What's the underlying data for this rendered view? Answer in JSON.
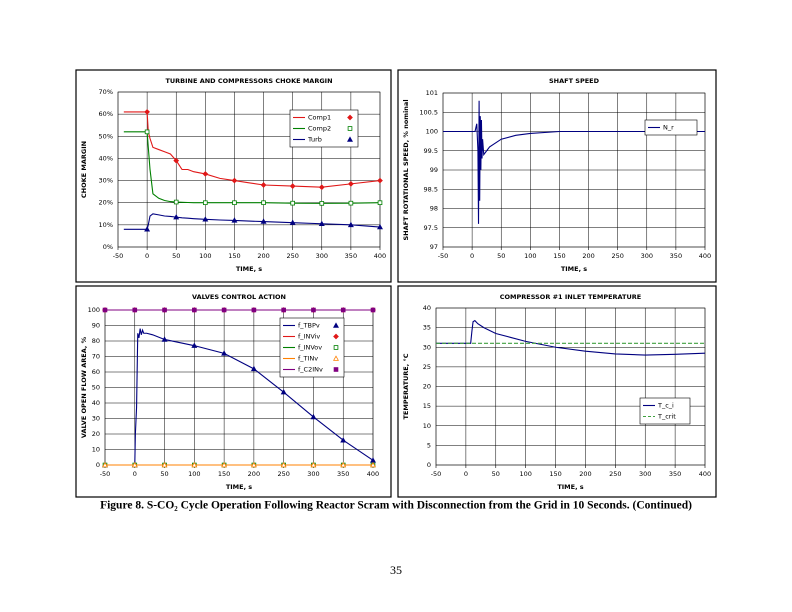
{
  "chart_data": [
    {
      "type": "line",
      "title": "TURBINE AND COMPRESSORS CHOKE MARGIN",
      "xlabel": "TIME, s",
      "ylabel": "CHOKE MARGIN",
      "x": [
        -40,
        -20,
        0,
        2,
        5,
        10,
        20,
        30,
        40,
        50,
        60,
        70,
        80,
        100,
        125,
        150,
        175,
        200,
        250,
        300,
        350,
        400
      ],
      "series": [
        {
          "name": "Comp1",
          "color": "#e01818",
          "marker": "diamond",
          "values": [
            61,
            61,
            61,
            52,
            49,
            45,
            44,
            43,
            42,
            39,
            35,
            35,
            34,
            33,
            31,
            30,
            29,
            28,
            27.5,
            27,
            28.5,
            30
          ]
        },
        {
          "name": "Comp2",
          "color": "#008000",
          "marker": "square-open",
          "values": [
            52,
            52,
            52,
            45,
            35,
            24,
            22,
            21,
            20.5,
            20.3,
            20.2,
            20.1,
            20,
            20,
            20,
            20,
            20,
            20,
            19.8,
            19.7,
            19.8,
            20
          ]
        },
        {
          "name": "Turb",
          "color": "#000080",
          "marker": "triangle",
          "values": [
            8,
            8,
            8,
            10,
            14,
            15,
            14.5,
            14,
            13.8,
            13.5,
            13.2,
            13,
            12.8,
            12.5,
            12.2,
            12,
            11.7,
            11.5,
            11,
            10.5,
            10,
            9
          ]
        }
      ],
      "xlim": [
        -50,
        400
      ],
      "xticks": [
        -50,
        0,
        50,
        100,
        150,
        200,
        250,
        300,
        350,
        400
      ],
      "ylim": [
        0,
        70
      ],
      "yticks": [
        {
          "value": 0,
          "label": "0%"
        },
        {
          "value": 10,
          "label": "10%"
        },
        {
          "value": 20,
          "label": "20%"
        },
        {
          "value": 30,
          "label": "30%"
        },
        {
          "value": 40,
          "label": "40%"
        },
        {
          "value": 50,
          "label": "50%"
        },
        {
          "value": 60,
          "label": "60%"
        },
        {
          "value": 70,
          "label": "70%"
        }
      ],
      "grid": true,
      "legend": "upper right"
    },
    {
      "type": "line",
      "title": "SHAFT SPEED",
      "xlabel": "TIME, s",
      "ylabel": "SHAFT ROTATIONAL SPEED, % nominal",
      "x": [
        -50,
        -20,
        0,
        5,
        8,
        10,
        11,
        12,
        13,
        14,
        15,
        16,
        17,
        18,
        20,
        25,
        30,
        40,
        50,
        75,
        100,
        150,
        200,
        300,
        400
      ],
      "series": [
        {
          "name": "N_r",
          "color": "#000080",
          "values": [
            100,
            100,
            100,
            100,
            100.2,
            99.5,
            97.6,
            100.8,
            98.2,
            100.4,
            99,
            100.3,
            99.3,
            99.8,
            99.4,
            99.5,
            99.6,
            99.7,
            99.8,
            99.9,
            99.95,
            100,
            100,
            100,
            100
          ]
        }
      ],
      "xlim": [
        -50,
        400
      ],
      "xticks": [
        -50,
        0,
        50,
        100,
        150,
        200,
        250,
        300,
        350,
        400
      ],
      "ylim": [
        97,
        101
      ],
      "yticks": [
        97,
        97.5,
        98,
        98.5,
        99,
        99.5,
        100,
        100.5,
        101
      ],
      "grid": true,
      "legend": "upper right"
    },
    {
      "type": "line",
      "title": "VALVES CONTROL ACTION",
      "xlabel": "TIME, s",
      "ylabel": "VALVE OPEN FLOW AREA, %",
      "x": [
        -50,
        -25,
        0,
        1,
        3,
        5,
        7,
        9,
        11,
        13,
        15,
        20,
        30,
        50,
        100,
        150,
        200,
        250,
        300,
        350,
        400
      ],
      "series": [
        {
          "name": "f_TBPv",
          "color": "#000080",
          "marker": "triangle",
          "values": [
            0,
            0,
            0,
            20,
            37,
            85,
            82,
            88,
            84,
            87,
            85,
            85,
            84,
            81,
            77,
            72,
            62,
            47,
            31,
            16,
            3
          ]
        },
        {
          "name": "f_INViv",
          "color": "#e01818",
          "marker": "diamond",
          "values": [
            100,
            100,
            100,
            100,
            100,
            100,
            100,
            100,
            100,
            100,
            100,
            100,
            100,
            100,
            100,
            100,
            100,
            100,
            100,
            100,
            100
          ]
        },
        {
          "name": "f_INVov",
          "color": "#008000",
          "marker": "square-open",
          "values": [
            0,
            0,
            0,
            0,
            0,
            0,
            0,
            0,
            0,
            0,
            0,
            0,
            0,
            0,
            0,
            0,
            0,
            0,
            0,
            0,
            0
          ]
        },
        {
          "name": "f_TINv",
          "color": "#ff8000",
          "marker": "triangle-open",
          "values": [
            0,
            0,
            0,
            0,
            0,
            0,
            0,
            0,
            0,
            0,
            0,
            0,
            0,
            0,
            0,
            0,
            0,
            0,
            0,
            0,
            0
          ]
        },
        {
          "name": "f_C2INv",
          "color": "#800080",
          "marker": "square",
          "values": [
            100,
            100,
            100,
            100,
            100,
            100,
            100,
            100,
            100,
            100,
            100,
            100,
            100,
            100,
            100,
            100,
            100,
            100,
            100,
            100,
            100
          ]
        }
      ],
      "xlim": [
        -50,
        400
      ],
      "xticks": [
        -50,
        0,
        50,
        100,
        150,
        200,
        250,
        300,
        350,
        400
      ],
      "ylim": [
        0,
        100
      ],
      "yticks": [
        0,
        10,
        20,
        30,
        40,
        50,
        60,
        70,
        80,
        90,
        100
      ],
      "grid": true,
      "legend": "upper right"
    },
    {
      "type": "line",
      "title": "COMPRESSOR #1 INLET TEMPERATURE",
      "xlabel": "TIME, s",
      "ylabel": "TEMPERATURE, °C",
      "x": [
        -50,
        -20,
        0,
        5,
        8,
        10,
        12,
        15,
        20,
        30,
        50,
        75,
        100,
        150,
        200,
        250,
        300,
        350,
        400
      ],
      "series": [
        {
          "name": "T_c_i",
          "color": "#000080",
          "values": [
            31,
            31,
            31,
            31,
            31,
            34,
            36.5,
            36.8,
            36,
            35,
            33.5,
            32.5,
            31.5,
            30,
            29,
            28.3,
            28,
            28.2,
            28.5
          ]
        },
        {
          "name": "T_crit",
          "color": "#40a040",
          "dash": true,
          "values": [
            31,
            31,
            31,
            31,
            31,
            31,
            31,
            31,
            31,
            31,
            31,
            31,
            31,
            31,
            31,
            31,
            31,
            31,
            31
          ]
        }
      ],
      "xlim": [
        -50,
        400
      ],
      "xticks": [
        -50,
        0,
        50,
        100,
        150,
        200,
        250,
        300,
        350,
        400
      ],
      "ylim": [
        0,
        40
      ],
      "yticks": [
        0,
        5,
        10,
        15,
        20,
        25,
        30,
        35,
        40
      ],
      "grid": true,
      "legend": "lower right"
    }
  ],
  "caption": "Figure 8. S-CO₂ Cycle Operation Following Reactor Scram with Disconnection from the Grid in 10 Seconds. (Continued)",
  "page_number": "35"
}
